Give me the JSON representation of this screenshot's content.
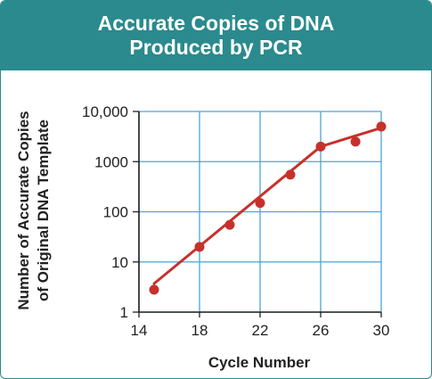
{
  "title_lines": [
    "Accurate Copies of DNA",
    "Produced by PCR"
  ],
  "colors": {
    "header": "#2a8a8d",
    "grid": "#4aa5d6",
    "series": "#c8312b",
    "axis": "#222222"
  },
  "chart_data": {
    "type": "line",
    "title": "Accurate Copies of DNA Produced by PCR",
    "xlabel": "Cycle Number",
    "ylabel": "Number of Accurate Copies of Original DNA Template",
    "ylabel_lines": [
      "Number of Accurate Copies",
      "of Original DNA Template"
    ],
    "xlim": [
      14,
      30
    ],
    "ylim": [
      1,
      10000
    ],
    "yscale": "log",
    "grid": true,
    "x_ticks": [
      14,
      18,
      22,
      26,
      30
    ],
    "x_tick_labels": [
      "14",
      "18",
      "22",
      "26",
      "30"
    ],
    "y_ticks": [
      1,
      10,
      100,
      1000,
      10000
    ],
    "y_tick_labels": [
      "1",
      "10",
      "100",
      "1000",
      "10,000"
    ],
    "series": [
      {
        "type": "scatter",
        "x": [
          15,
          18,
          20,
          22,
          24,
          26,
          28.3,
          30
        ],
        "y": [
          2.8,
          20,
          55,
          150,
          550,
          2000,
          2500,
          5000
        ]
      },
      {
        "type": "line",
        "x": [
          15,
          26,
          30
        ],
        "y": [
          3.7,
          2000,
          4700
        ]
      }
    ]
  }
}
